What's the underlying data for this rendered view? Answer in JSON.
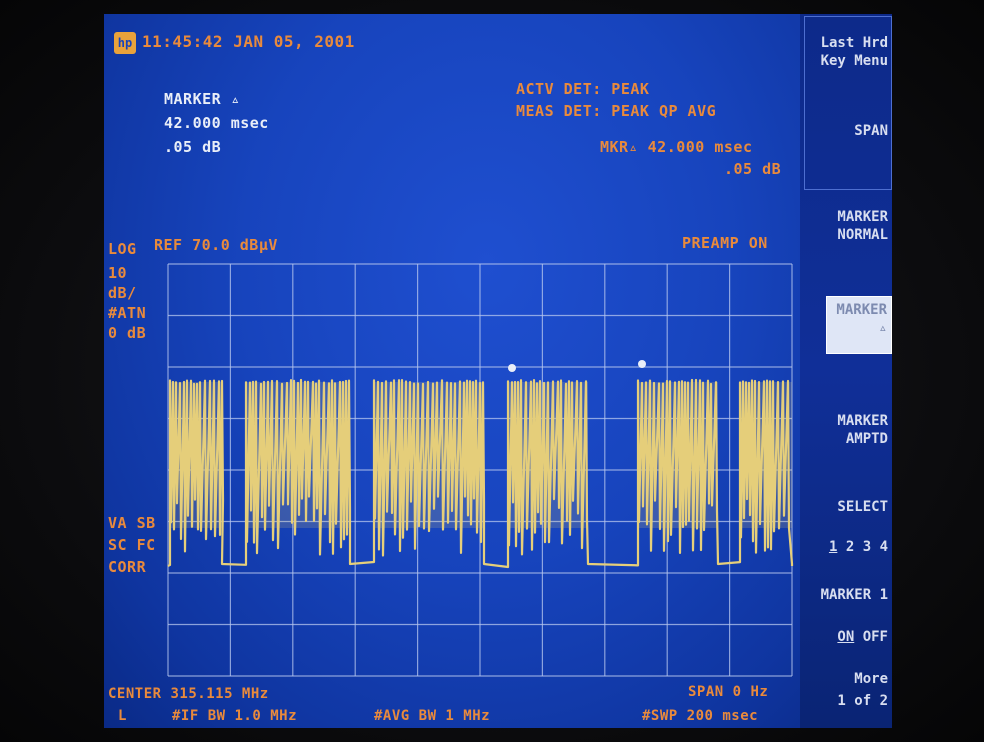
{
  "header": {
    "timestamp": "11:45:42 JAN 05, 2001"
  },
  "marker_readout": {
    "title": "MARKER ▵",
    "time": "42.000 msec",
    "level": ".05 dB"
  },
  "detector": {
    "actv": "ACTV DET: PEAK",
    "meas": "MEAS DET: PEAK QP AVG",
    "mkr_delta_time": "MKR▵ 42.000 msec",
    "mkr_delta_level": ".05 dB"
  },
  "scale": {
    "log": "LOG",
    "ref": "REF 70.0 dBµV",
    "per_div_value": "10",
    "per_div_unit": "dB/",
    "atten_label": "#ATN",
    "atten_value": "0 dB",
    "preamp": "PREAMP ON"
  },
  "left_flags": {
    "row1": "VA SB",
    "row2": "SC FC",
    "row3": "CORR"
  },
  "footer": {
    "center": "CENTER 315.115 MHz",
    "l_marker": "L",
    "if_bw": "#IF BW 1.0 MHz",
    "avg_bw": "#AVG BW 1 MHz",
    "span": "SPAN 0 Hz",
    "sweep": "#SWP 200 msec"
  },
  "softkeys": {
    "last_menu": "Last Hrd\nKey Menu",
    "span": "SPAN",
    "marker_normal": "MARKER\nNORMAL",
    "marker_delta": "MARKER\n▵",
    "marker_ampt": "MARKER\nAMPTD",
    "select_label": "SELECT",
    "select_options": [
      "1",
      "2",
      "3",
      "4"
    ],
    "marker1_label": "MARKER 1",
    "on": "ON",
    "off": "OFF",
    "more": "More",
    "more_page": "1 of 2"
  },
  "trace": {
    "color": "#e6cf7a",
    "background": "#1744bd",
    "grid_color": "#b6c6ee"
  }
}
